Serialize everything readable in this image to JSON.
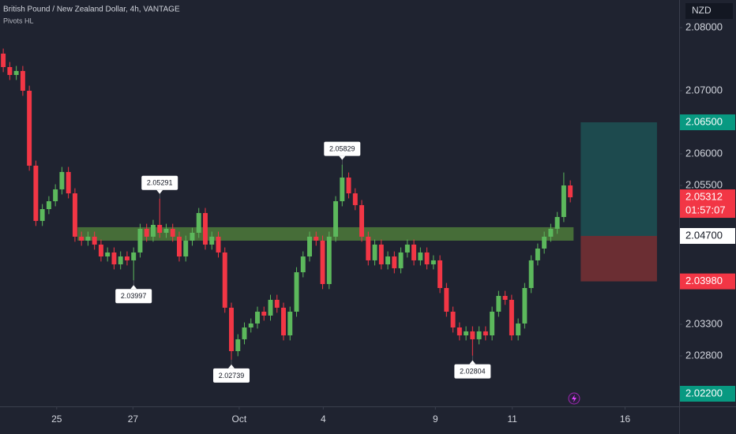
{
  "chart_data": {
    "type": "candlestick",
    "title": "British Pound / New Zealand Dollar, 4h, VANTAGE",
    "subtitle": "Pivots HL",
    "currency": "NZD",
    "up_color": "#5cb85c",
    "down_color": "#f23645",
    "grid": false,
    "ylim": [
      2.02,
      2.084375
    ],
    "xlim": [
      -0.5,
      103.7
    ],
    "yticks": [
      {
        "value": 2.08,
        "label": "2.08000"
      },
      {
        "value": 2.07,
        "label": "2.07000"
      },
      {
        "value": 2.06,
        "label": "2.06000"
      },
      {
        "value": 2.055,
        "label": "2.05500"
      },
      {
        "value": 2.033,
        "label": "2.03300"
      },
      {
        "value": 2.028,
        "label": "2.02800"
      }
    ],
    "xticks": [
      {
        "value": 8.2,
        "label": "25"
      },
      {
        "value": 19.9,
        "label": "27"
      },
      {
        "value": 36.2,
        "label": "Oct"
      },
      {
        "value": 49.1,
        "label": "4"
      },
      {
        "value": 66.3,
        "label": "9"
      },
      {
        "value": 78.1,
        "label": "11"
      },
      {
        "value": 95.4,
        "label": "16"
      }
    ],
    "open": [
      2.07588,
      2.07375,
      2.0725,
      2.07313,
      2.07,
      2.05813,
      2.04938,
      2.05125,
      2.0525,
      2.05438,
      2.05713,
      2.05375,
      2.04688,
      2.04625,
      2.04688,
      2.04563,
      2.04375,
      2.04438,
      2.0425,
      2.04375,
      2.04313,
      2.04438,
      2.04813,
      2.04688,
      2.04875,
      2.0475,
      2.04813,
      2.04688,
      2.04375,
      2.04625,
      2.0475,
      2.05063,
      2.04563,
      2.04688,
      2.04438,
      2.03563,
      2.02875,
      2.03063,
      2.0325,
      2.03313,
      2.035,
      2.03438,
      2.03688,
      2.03563,
      2.03125,
      2.035,
      2.04125,
      2.04375,
      2.04688,
      2.04625,
      2.03938,
      2.04688,
      2.0525,
      2.05625,
      2.05375,
      2.05188,
      2.04688,
      2.04313,
      2.04563,
      2.0425,
      2.04375,
      2.04188,
      2.04438,
      2.04563,
      2.04313,
      2.04438,
      2.0425,
      2.04313,
      2.03875,
      2.035,
      2.0325,
      2.03125,
      2.03188,
      2.03063,
      2.03188,
      2.03125,
      2.035,
      2.0375,
      2.03688,
      2.03125,
      2.03313,
      2.03875,
      2.04313,
      2.045,
      2.04688,
      2.04813,
      2.05,
      2.055
    ],
    "high": [
      2.07668,
      2.07455,
      2.07393,
      2.07393,
      2.0708,
      2.05893,
      2.05205,
      2.0533,
      2.05518,
      2.05793,
      2.05793,
      2.05455,
      2.04768,
      2.04768,
      2.04768,
      2.04643,
      2.04518,
      2.04518,
      2.04455,
      2.04455,
      2.04518,
      2.04893,
      2.04893,
      2.04955,
      2.05291,
      2.04893,
      2.04893,
      2.04768,
      2.04705,
      2.0483,
      2.05143,
      2.05143,
      2.04768,
      2.04768,
      2.04518,
      2.03643,
      2.03143,
      2.0333,
      2.03393,
      2.0358,
      2.0358,
      2.03768,
      2.03768,
      2.03643,
      2.0358,
      2.04205,
      2.04455,
      2.04768,
      2.04768,
      2.04705,
      2.04768,
      2.0533,
      2.05829,
      2.05705,
      2.05455,
      2.05268,
      2.04768,
      2.04643,
      2.04643,
      2.04455,
      2.04455,
      2.04518,
      2.04643,
      2.04643,
      2.04518,
      2.04518,
      2.04393,
      2.04393,
      2.03955,
      2.0358,
      2.0333,
      2.03268,
      2.03268,
      2.03268,
      2.03268,
      2.0358,
      2.0383,
      2.0383,
      2.03768,
      2.03393,
      2.03955,
      2.04393,
      2.0458,
      2.04768,
      2.04893,
      2.0508,
      2.05705,
      2.0558
    ],
    "low": [
      2.07295,
      2.0717,
      2.0717,
      2.0692,
      2.05733,
      2.04858,
      2.04858,
      2.05045,
      2.0517,
      2.05358,
      2.05295,
      2.04608,
      2.04545,
      2.04545,
      2.04483,
      2.04295,
      2.04295,
      2.0417,
      2.0417,
      2.04233,
      2.03997,
      2.04358,
      2.04608,
      2.04608,
      2.0467,
      2.0467,
      2.04608,
      2.04295,
      2.04295,
      2.04545,
      2.0467,
      2.04483,
      2.04483,
      2.04358,
      2.03483,
      2.02739,
      2.02795,
      2.02983,
      2.0317,
      2.03233,
      2.03358,
      2.03358,
      2.03483,
      2.03045,
      2.03045,
      2.0342,
      2.04045,
      2.04295,
      2.04545,
      2.03858,
      2.03858,
      2.04608,
      2.0517,
      2.05295,
      2.05108,
      2.04608,
      2.04233,
      2.04233,
      2.0417,
      2.0417,
      2.04108,
      2.04108,
      2.04358,
      2.04233,
      2.04233,
      2.0417,
      2.0417,
      2.03795,
      2.0342,
      2.0317,
      2.03045,
      2.03045,
      2.02804,
      2.02983,
      2.03045,
      2.03045,
      2.0342,
      2.03608,
      2.03045,
      2.03045,
      2.03233,
      2.03795,
      2.04233,
      2.0442,
      2.04608,
      2.04733,
      2.0492,
      2.05232
    ],
    "close": [
      2.07375,
      2.0725,
      2.07313,
      2.07,
      2.05813,
      2.04938,
      2.05125,
      2.0525,
      2.05438,
      2.05713,
      2.05375,
      2.04688,
      2.04625,
      2.04688,
      2.04563,
      2.04375,
      2.04438,
      2.0425,
      2.04375,
      2.04313,
      2.04438,
      2.04813,
      2.04688,
      2.04875,
      2.0475,
      2.04813,
      2.04688,
      2.04375,
      2.04625,
      2.0475,
      2.05063,
      2.04563,
      2.04688,
      2.04438,
      2.03563,
      2.02875,
      2.03063,
      2.0325,
      2.03313,
      2.035,
      2.03438,
      2.03688,
      2.03563,
      2.03125,
      2.035,
      2.04125,
      2.04375,
      2.04688,
      2.04625,
      2.03938,
      2.04688,
      2.0525,
      2.05625,
      2.05375,
      2.05188,
      2.04688,
      2.04313,
      2.04563,
      2.0425,
      2.04375,
      2.04188,
      2.04438,
      2.04563,
      2.04313,
      2.04438,
      2.0425,
      2.04313,
      2.03875,
      2.035,
      2.0325,
      2.03125,
      2.03188,
      2.03063,
      2.03188,
      2.03125,
      2.035,
      2.0375,
      2.03688,
      2.03125,
      2.03313,
      2.03875,
      2.04313,
      2.045,
      2.04688,
      2.04813,
      2.05,
      2.055,
      2.05312
    ],
    "pivots": [
      {
        "x": 20,
        "value": 2.03997,
        "label": "2.03997",
        "kind": "low"
      },
      {
        "x": 24,
        "value": 2.05291,
        "label": "2.05291",
        "kind": "high"
      },
      {
        "x": 35,
        "value": 2.02739,
        "label": "2.02739",
        "kind": "low"
      },
      {
        "x": 52,
        "value": 2.05829,
        "label": "2.05829",
        "kind": "high"
      },
      {
        "x": 72,
        "value": 2.02804,
        "label": "2.02804",
        "kind": "low"
      }
    ],
    "zone": {
      "top": 2.04838,
      "bottom": 2.04625,
      "x_start": 11.4,
      "x_end": 87.5,
      "color": "#4e7a3a"
    },
    "position": {
      "entry": 2.047,
      "target": 2.065,
      "stop": 2.0398,
      "x_start": 88.6,
      "x_end": 100.3,
      "profit_color": "#1d4a4e",
      "loss_color": "#6b2e33"
    },
    "price_labels": [
      {
        "value": 2.065,
        "label": "2.06500",
        "color": "#089981",
        "text_color": "#ffffff"
      },
      {
        "value": 2.05312,
        "label": "2.05312",
        "color": "#f23645",
        "text_color": "#ffffff",
        "countdown": "01:57:07"
      },
      {
        "value": 2.047,
        "label": "2.04700",
        "color": "#ffffff",
        "text_color": "#131722"
      },
      {
        "value": 2.0398,
        "label": "2.03980",
        "color": "#f23645",
        "text_color": "#ffffff"
      },
      {
        "value": 2.022,
        "label": "2.02200",
        "color": "#089981",
        "text_color": "#ffffff"
      }
    ]
  }
}
